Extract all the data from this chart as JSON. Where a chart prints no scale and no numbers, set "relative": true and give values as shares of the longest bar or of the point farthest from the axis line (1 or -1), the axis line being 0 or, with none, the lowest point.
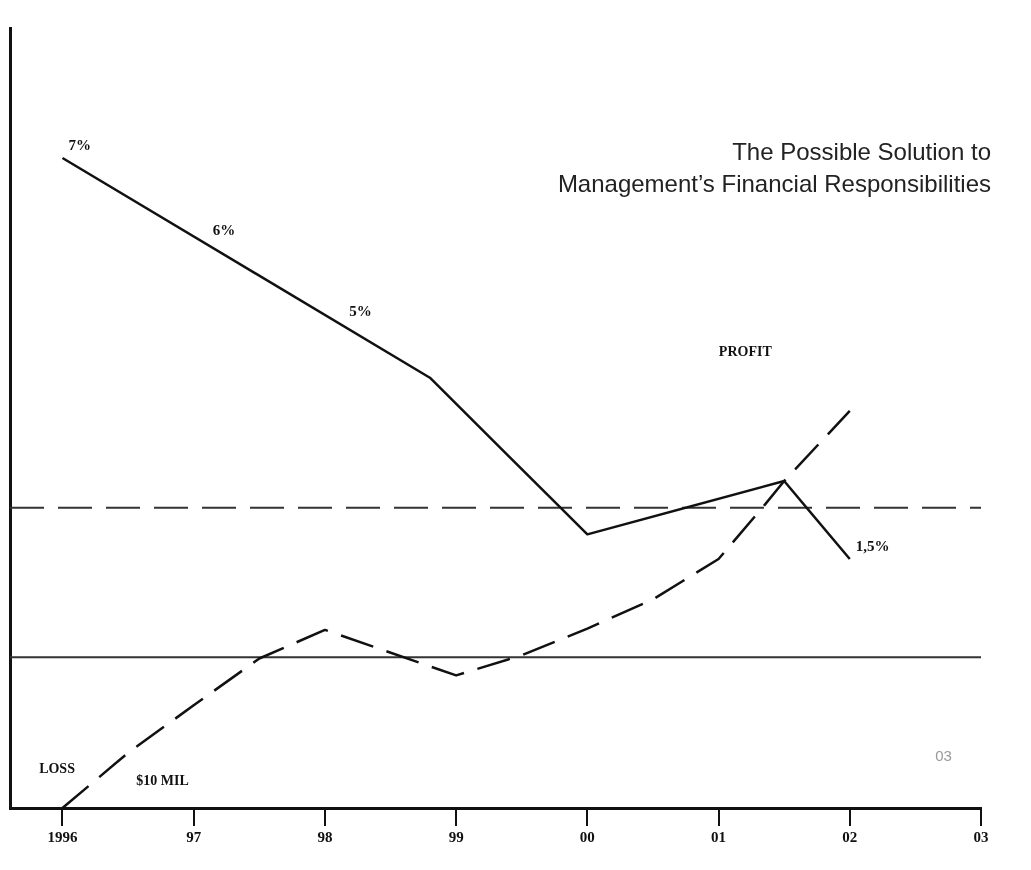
{
  "chart_data": {
    "type": "line",
    "title": "The Possible Solution to\nManagement’s Financial Responsibilities",
    "relative": true,
    "marker": "none",
    "grid": false,
    "xlim": [
      1995.6,
      2003
    ],
    "xticks": [
      {
        "value": 1996,
        "label": "1996"
      },
      {
        "value": 1997,
        "label": "97"
      },
      {
        "value": 1998,
        "label": "98"
      },
      {
        "value": 1999,
        "label": "99"
      },
      {
        "value": 2000,
        "label": "00"
      },
      {
        "value": 2001,
        "label": "01"
      },
      {
        "value": 2002,
        "label": "02"
      },
      {
        "value": 2003,
        "label": "03"
      }
    ],
    "series": [
      {
        "color": "#111111",
        "line_style": "solid",
        "x": [
          1996,
          1998.8,
          2000,
          2001.5,
          2002
        ],
        "values": [
          1.0,
          0.662,
          0.421,
          0.503,
          0.383
        ]
      },
      {
        "color": "#111111",
        "line_style": "dashed",
        "x": [
          1996,
          1996.5,
          1997,
          1997.5,
          1998,
          1999,
          1999.5,
          2000,
          2000.5,
          2001,
          2001.35,
          2001.5,
          2002
        ],
        "values": [
          0,
          0.085,
          0.158,
          0.23,
          0.274,
          0.204,
          0.235,
          0.276,
          0.321,
          0.383,
          0.466,
          0.503,
          0.611
        ]
      }
    ],
    "ref_lines": [
      {
        "axis": "y",
        "value": 0.462,
        "color": "#333333",
        "line_style": "dashed"
      },
      {
        "axis": "y",
        "value": 0.232,
        "color": "#333333",
        "line_style": "solid"
      }
    ],
    "annotations": [
      {
        "text": "7%",
        "x": 1996,
        "y": 1.0
      },
      {
        "text": "6%",
        "x": 1997.1,
        "y": 0.87
      },
      {
        "text": "5%",
        "x": 1998.14,
        "y": 0.744
      },
      {
        "text": "1,5%",
        "x": 2002,
        "y": 0.383
      },
      "PROFIT",
      "LOSS",
      "$10 MIL",
      "03"
    ]
  }
}
